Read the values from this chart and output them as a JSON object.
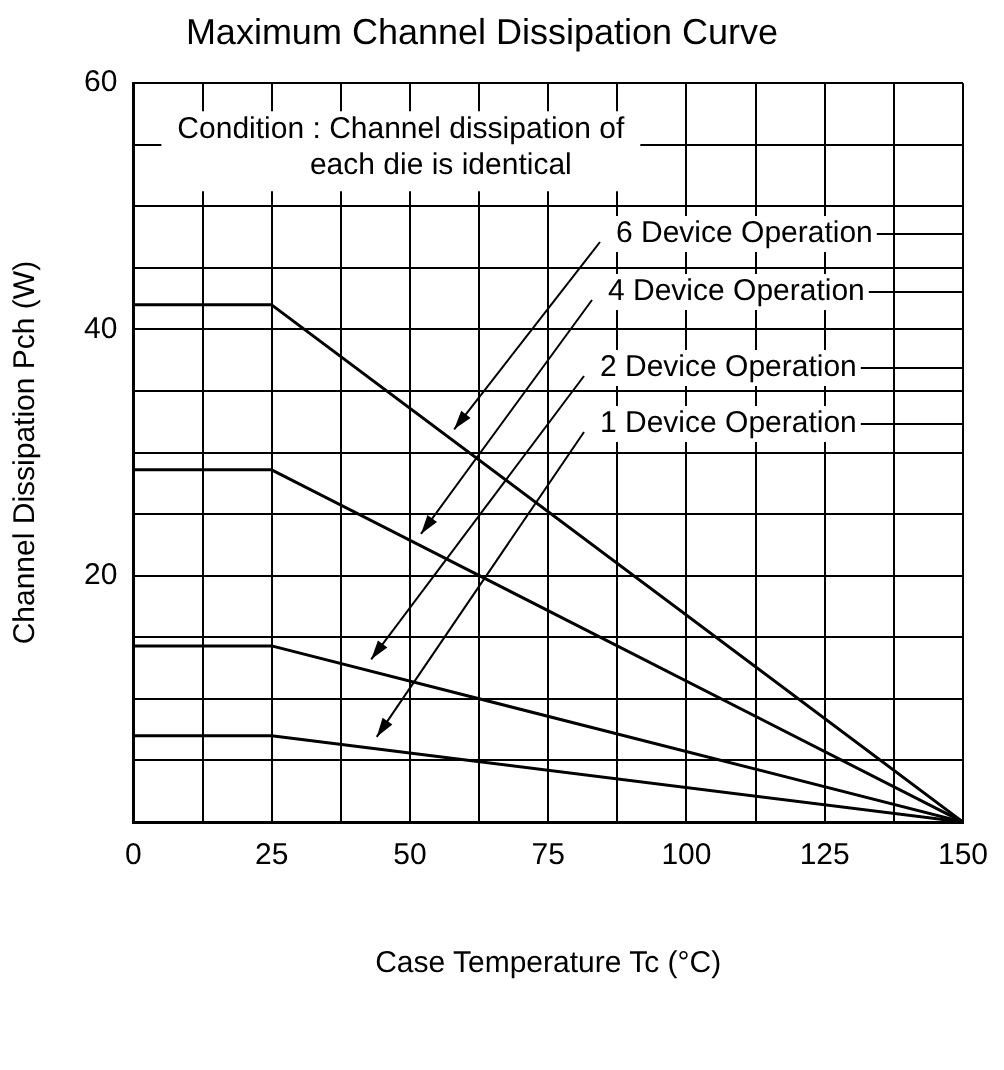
{
  "chart_data": {
    "type": "line",
    "title": "Maximum Channel Dissipation Curve",
    "xlabel": "Case Temperature Tc (°C)",
    "ylabel": "Channel Dissipation Pch (W)",
    "annotations": [
      "Condition : Channel dissipation of\neach die is identical"
    ],
    "series": [
      {
        "name": "6 Device Operation",
        "color": "#000000",
        "x": [
          0,
          25,
          150
        ],
        "values": [
          42,
          42,
          0
        ]
      },
      {
        "name": "4 Device Operation",
        "color": "#000000",
        "x": [
          0,
          25,
          150
        ],
        "values": [
          28.6,
          28.6,
          0
        ]
      },
      {
        "name": "2 Device Operation",
        "color": "#000000",
        "x": [
          0,
          25,
          150
        ],
        "values": [
          14.3,
          14.3,
          0
        ]
      },
      {
        "name": "1 Device Operation",
        "color": "#000000",
        "x": [
          0,
          25,
          150
        ],
        "values": [
          7,
          7,
          0
        ]
      }
    ],
    "xlim": [
      0,
      150
    ],
    "xticks": [
      0,
      {
        "value": 12.5,
        "label": null
      },
      25,
      {
        "value": 37.5,
        "label": null
      },
      50,
      {
        "value": 62.5,
        "label": null
      },
      75,
      {
        "value": 87.5,
        "label": null
      },
      100,
      {
        "value": 112.5,
        "label": null
      },
      125,
      {
        "value": 137.5,
        "label": null
      },
      150
    ],
    "ylim": [
      0,
      60
    ],
    "yticks": [
      {
        "value": 0,
        "label": null
      },
      {
        "value": 5,
        "label": null
      },
      {
        "value": 10,
        "label": null
      },
      {
        "value": 15,
        "label": null
      },
      20,
      {
        "value": 25,
        "label": null
      },
      {
        "value": 30,
        "label": null
      },
      {
        "value": 35,
        "label": null
      },
      40,
      {
        "value": 45,
        "label": null
      },
      {
        "value": 50,
        "label": null
      },
      {
        "value": 55,
        "label": null
      },
      60
    ],
    "grid": true,
    "legend": "top right",
    "marker": "none",
    "line_style": "solid"
  }
}
